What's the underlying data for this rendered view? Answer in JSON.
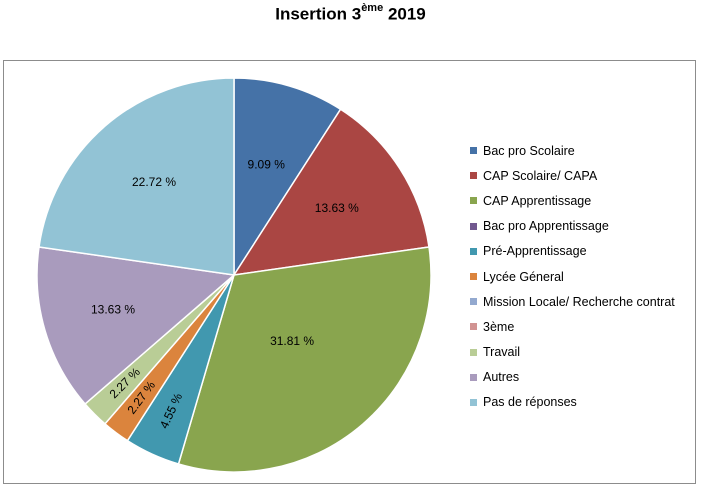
{
  "title": {
    "main": "Insertion 3",
    "sup": "ème",
    "tail": " 2019"
  },
  "chart_data": {
    "type": "pie",
    "title": "Insertion 3ème 2019",
    "categories": [
      "Bac pro Scolaire",
      "CAP Scolaire/ CAPA",
      "CAP Apprentissage",
      "Bac pro Apprentissage",
      "Pré-Apprentissage",
      "Lycée Géneral",
      "Mission Locale/ Recherche contrat",
      "3ème",
      "Travail",
      "Autres",
      "Pas de réponses"
    ],
    "values": [
      9.09,
      13.63,
      31.81,
      0,
      4.55,
      2.27,
      0,
      0,
      2.27,
      13.63,
      22.72
    ],
    "labels": [
      "9.09 %",
      "13.63 %",
      "31.81 %",
      "",
      "4.55 %",
      "2.27 %",
      "",
      "",
      "2.27 %",
      "13.63 %",
      "22.72 %"
    ],
    "colors": [
      "#4572A7",
      "#AA4643",
      "#89A54E",
      "#71588F",
      "#4198AF",
      "#DB843D",
      "#93A9CF",
      "#D19392",
      "#B9CD96",
      "#A99BBD",
      "#92C3D5"
    ],
    "legend_position": "right"
  }
}
